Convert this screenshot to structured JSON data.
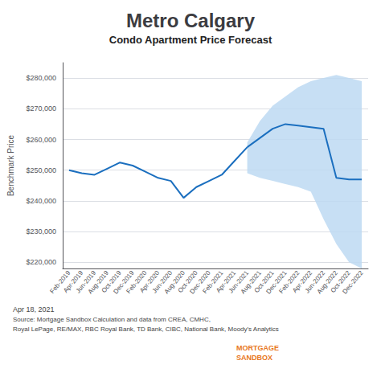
{
  "chart_data": {
    "type": "line",
    "title": "Metro Calgary",
    "subtitle": "Condo Apartment Price Forecast",
    "ylabel": "Benchmark Price",
    "categories": [
      "Feb-2019",
      "Apr-2019",
      "Jun-2019",
      "Aug-2019",
      "Oct-2019",
      "Dec-2019",
      "Feb-2020",
      "Apr-2020",
      "Jun-2020",
      "Aug-2020",
      "Oct-2020",
      "Dec-2020",
      "Feb-2021",
      "Apr-2021",
      "Jun-2021",
      "Aug-2021",
      "Oct-2021",
      "Dec-2021",
      "Feb-2022",
      "Apr-2022",
      "Jun-2022",
      "Aug-2022",
      "Oct-2022",
      "Dec-2022"
    ],
    "series": [
      {
        "type": "band",
        "color": "#BDD9F2",
        "lower": [
          null,
          null,
          null,
          null,
          null,
          null,
          null,
          null,
          null,
          null,
          null,
          null,
          null,
          null,
          249000,
          247500,
          246500,
          245500,
          244500,
          243000,
          234000,
          226000,
          220000,
          218000
        ],
        "upper": [
          null,
          null,
          null,
          null,
          null,
          null,
          null,
          null,
          null,
          null,
          null,
          null,
          null,
          null,
          259000,
          266000,
          271000,
          274000,
          277000,
          279000,
          280000,
          281000,
          280000,
          279000
        ]
      },
      {
        "type": "line",
        "color": "#1B6FBF",
        "values": [
          250000,
          249000,
          248500,
          250500,
          252500,
          251500,
          249500,
          247500,
          246500,
          241000,
          244500,
          246500,
          248500,
          253000,
          257500,
          null,
          null,
          null,
          null,
          null,
          null,
          null,
          null,
          null
        ]
      },
      {
        "type": "line",
        "color": "#1B6FBF",
        "values": [
          null,
          null,
          null,
          null,
          null,
          null,
          null,
          null,
          null,
          null,
          null,
          null,
          null,
          null,
          257500,
          260500,
          263500,
          265000,
          264500,
          264000,
          263500,
          247500,
          247000,
          247000
        ]
      }
    ],
    "ylim": [
      218000,
      285000
    ],
    "yticks": [
      {
        "value": 220000,
        "label": "$220,000"
      },
      {
        "value": 230000,
        "label": "$230,000"
      },
      {
        "value": 240000,
        "label": "$240,000"
      },
      {
        "value": 250000,
        "label": "$250,000"
      },
      {
        "value": 260000,
        "label": "$260,000"
      },
      {
        "value": 270000,
        "label": "$270,000"
      },
      {
        "value": 280000,
        "label": "$280,000"
      }
    ],
    "grid": true,
    "annotations": [
      "Apr 18, 2021",
      "Source: Mortgage Sandbox Calculation and data from CREA, CMHC,",
      "Royal LePage, RE/MAX, RBC Royal Bank, TD Bank, CIBC, National Bank, Moody's Analytics",
      "MORTGAGE",
      "SANDBOX"
    ]
  }
}
